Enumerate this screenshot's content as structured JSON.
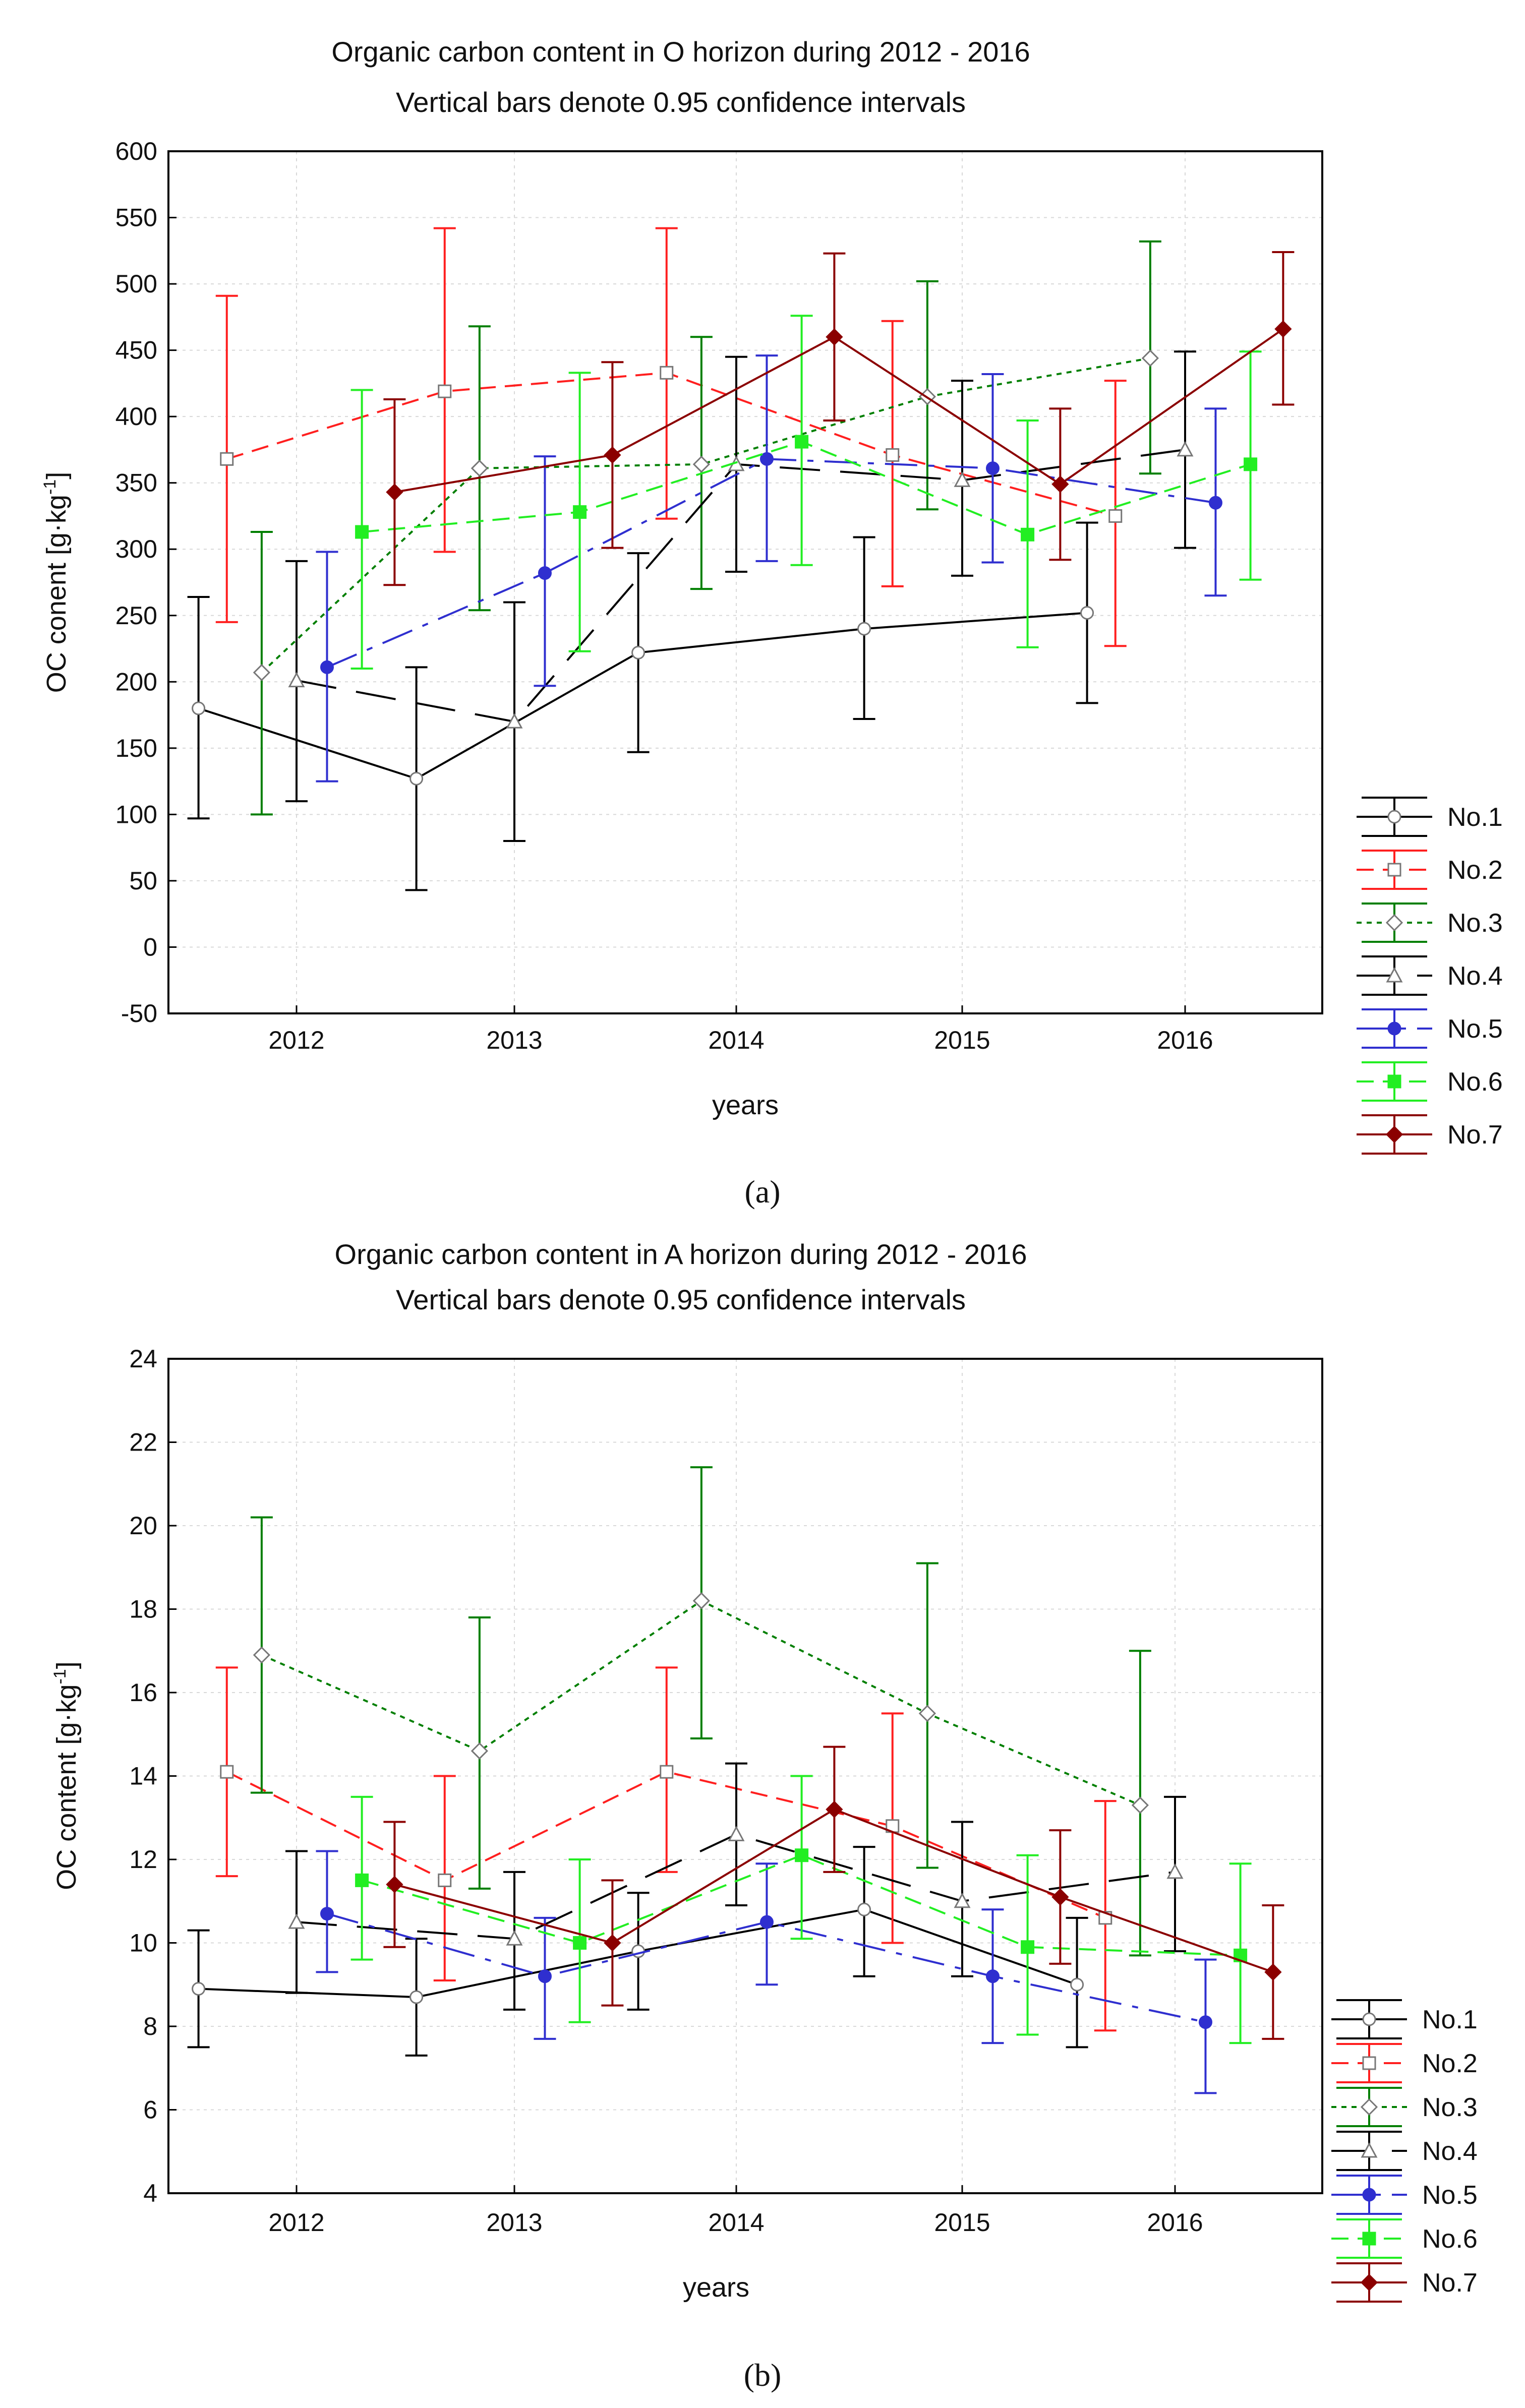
{
  "chart_data": [
    {
      "type": "line",
      "title": "Organic carbon content in O horizon during 2012 - 2016",
      "subtitle": "Vertical bars denote 0.95 confidence intervals",
      "xlabel": "years",
      "ylabel": "OC conent [g·kg⁻¹]",
      "ylabel_main": "OC conent [g·kg",
      "ylabel_sup": "-1",
      "ylabel_end": "]",
      "categories": [
        "2012",
        "2013",
        "2014",
        "2015",
        "2016"
      ],
      "ylim": [
        -50,
        600
      ],
      "yticks": [
        -50,
        0,
        50,
        100,
        150,
        200,
        250,
        300,
        350,
        400,
        450,
        500,
        550,
        600
      ],
      "grid": true,
      "legend": "right",
      "caption": "(a)",
      "series": [
        {
          "name": "No.1",
          "color": "#000000",
          "dash": "solid",
          "marker": "open-circle",
          "values": [
            180,
            127,
            222,
            240,
            252
          ],
          "lower": [
            97,
            43,
            147,
            172,
            184
          ],
          "upper": [
            264,
            211,
            297,
            309,
            320
          ]
        },
        {
          "name": "No.2",
          "color": "#ff1f1f",
          "dash": "dashed",
          "marker": "open-square",
          "values": [
            368,
            419,
            433,
            371,
            325
          ],
          "lower": [
            245,
            298,
            323,
            272,
            227
          ],
          "upper": [
            491,
            542,
            542,
            472,
            427
          ]
        },
        {
          "name": "No.3",
          "color": "#007f00",
          "dash": "dotted",
          "marker": "open-diamond",
          "values": [
            207,
            361,
            364,
            415,
            444
          ],
          "lower": [
            100,
            254,
            270,
            330,
            357
          ],
          "upper": [
            313,
            468,
            460,
            502,
            532
          ]
        },
        {
          "name": "No.4",
          "color": "#000000",
          "dash": "longdash",
          "marker": "open-triangle",
          "values": [
            201,
            170,
            364,
            352,
            375
          ],
          "lower": [
            110,
            80,
            283,
            280,
            301
          ],
          "upper": [
            291,
            260,
            445,
            427,
            449
          ]
        },
        {
          "name": "No.5",
          "color": "#2f2fcf",
          "dash": "dashdot",
          "marker": "filled-circle",
          "values": [
            211,
            282,
            368,
            361,
            335
          ],
          "lower": [
            125,
            197,
            291,
            290,
            265
          ],
          "upper": [
            298,
            370,
            446,
            432,
            406
          ]
        },
        {
          "name": "No.6",
          "color": "#22ee22",
          "dash": "dashed",
          "marker": "filled-square",
          "values": [
            313,
            328,
            381,
            311,
            364
          ],
          "lower": [
            210,
            223,
            288,
            226,
            277
          ],
          "upper": [
            420,
            433,
            476,
            397,
            449
          ]
        },
        {
          "name": "No.7",
          "color": "#8b0000",
          "dash": "solid",
          "marker": "filled-diamond",
          "values": [
            343,
            371,
            460,
            349,
            466
          ],
          "lower": [
            273,
            301,
            397,
            292,
            409
          ],
          "upper": [
            413,
            441,
            523,
            406,
            524
          ]
        }
      ]
    },
    {
      "type": "line",
      "title": "Organic carbon content in A horizon during 2012 - 2016",
      "subtitle": "Vertical bars denote 0.95 confidence intervals",
      "xlabel": "years",
      "ylabel": "OC content [g·kg⁻¹]",
      "ylabel_main": "OC content [g·kg",
      "ylabel_sup": "-1",
      "ylabel_end": "]",
      "categories": [
        "2012",
        "2013",
        "2014",
        "2015",
        "2016"
      ],
      "ylim": [
        4,
        24
      ],
      "yticks": [
        4,
        6,
        8,
        10,
        12,
        14,
        16,
        18,
        20,
        22,
        24
      ],
      "grid": true,
      "legend": "right",
      "caption": "(b)",
      "series": [
        {
          "name": "No.1",
          "color": "#000000",
          "dash": "solid",
          "marker": "open-circle",
          "values": [
            8.9,
            8.7,
            9.8,
            10.8,
            9.0
          ],
          "lower": [
            7.5,
            7.3,
            8.4,
            9.2,
            7.5
          ],
          "upper": [
            10.3,
            10.1,
            11.2,
            12.3,
            10.6
          ]
        },
        {
          "name": "No.2",
          "color": "#ff1f1f",
          "dash": "dashed",
          "marker": "open-square",
          "values": [
            14.1,
            11.5,
            14.1,
            12.8,
            10.6
          ],
          "lower": [
            11.6,
            9.1,
            11.7,
            10.0,
            7.9
          ],
          "upper": [
            16.6,
            14.0,
            16.6,
            15.5,
            13.4
          ]
        },
        {
          "name": "No.3",
          "color": "#007f00",
          "dash": "dotted",
          "marker": "open-diamond",
          "values": [
            16.9,
            14.6,
            18.2,
            15.5,
            13.3
          ],
          "lower": [
            13.6,
            11.3,
            14.9,
            11.8,
            9.7
          ],
          "upper": [
            20.2,
            17.8,
            21.4,
            19.1,
            17.0
          ]
        },
        {
          "name": "No.4",
          "color": "#000000",
          "dash": "longdash",
          "marker": "open-triangle",
          "values": [
            10.5,
            10.1,
            12.6,
            11.0,
            11.7
          ],
          "lower": [
            8.8,
            8.4,
            10.9,
            9.2,
            9.8
          ],
          "upper": [
            12.2,
            11.7,
            14.3,
            12.9,
            13.5
          ]
        },
        {
          "name": "No.5",
          "color": "#2f2fcf",
          "dash": "dashdot",
          "marker": "filled-circle",
          "values": [
            10.7,
            9.2,
            10.5,
            9.2,
            8.1
          ],
          "lower": [
            9.3,
            7.7,
            9.0,
            7.6,
            6.4
          ],
          "upper": [
            12.2,
            10.6,
            11.9,
            10.8,
            9.6
          ]
        },
        {
          "name": "No.6",
          "color": "#22ee22",
          "dash": "dashed",
          "marker": "filled-square",
          "values": [
            11.5,
            10.0,
            12.1,
            9.9,
            9.7
          ],
          "lower": [
            9.6,
            8.1,
            10.1,
            7.8,
            7.6
          ],
          "upper": [
            13.5,
            12.0,
            14.0,
            12.1,
            11.9
          ]
        },
        {
          "name": "No.7",
          "color": "#8b0000",
          "dash": "solid",
          "marker": "filled-diamond",
          "values": [
            11.4,
            10.0,
            13.2,
            11.1,
            9.3
          ],
          "lower": [
            9.9,
            8.5,
            11.7,
            9.5,
            7.7
          ],
          "upper": [
            12.9,
            11.5,
            14.7,
            12.7,
            10.9
          ]
        }
      ]
    }
  ]
}
